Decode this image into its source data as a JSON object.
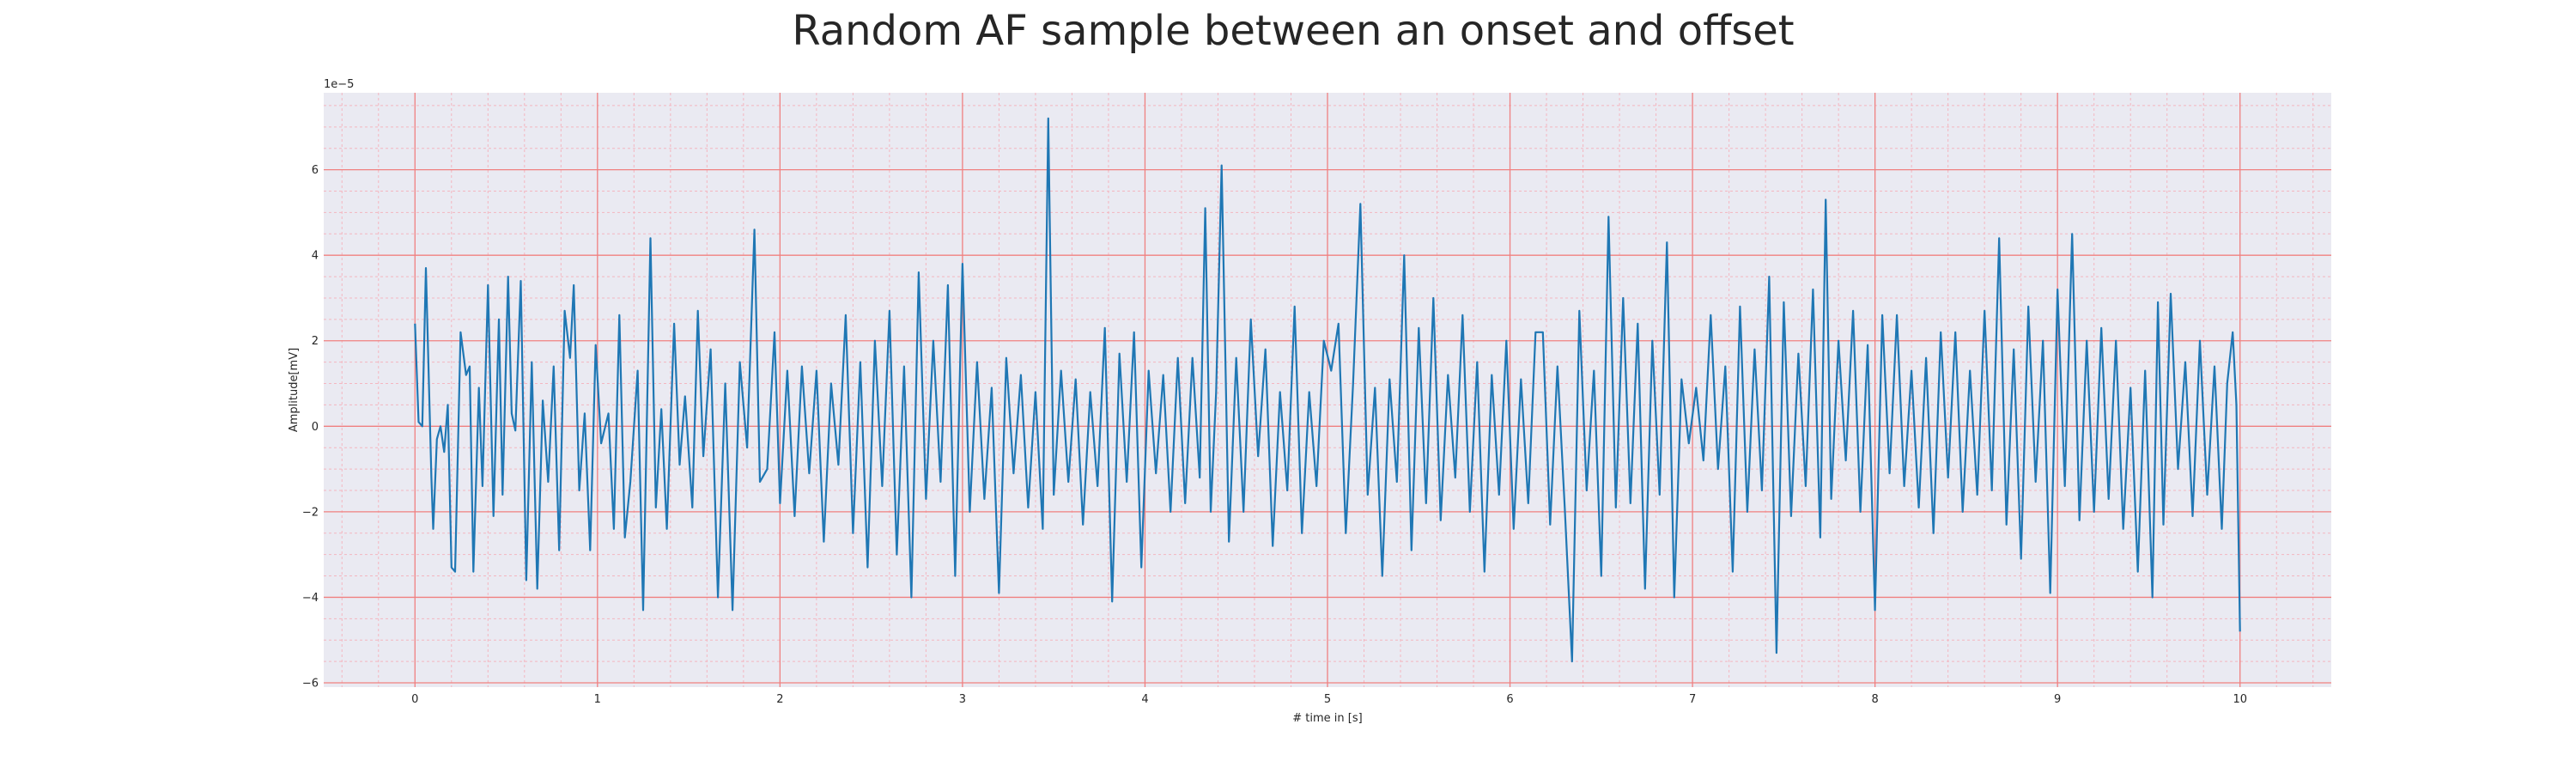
{
  "chart_data": {
    "type": "line",
    "title": "Random AF sample between an onset and offset",
    "xlabel": "# time in [s]",
    "ylabel": "Amplitude[mV]",
    "offset_text": "1e−5",
    "xlim": [
      -0.5,
      10.5
    ],
    "ylim": [
      -6.1,
      7.8
    ],
    "x_ticks": [
      0,
      1,
      2,
      3,
      4,
      5,
      6,
      7,
      8,
      9,
      10
    ],
    "x_tick_labels": [
      "0",
      "1",
      "2",
      "3",
      "4",
      "5",
      "6",
      "7",
      "8",
      "9",
      "10"
    ],
    "y_ticks": [
      -6,
      -4,
      -2,
      0,
      2,
      4,
      6
    ],
    "y_tick_labels": [
      "−6",
      "−4",
      "−2",
      "0",
      "2",
      "4",
      "6"
    ],
    "grid": "major and minor",
    "legend": "none",
    "colors": {
      "line": "#1f77b4",
      "plot_background": "#eaeaf2",
      "major_grid": "#f08080",
      "minor_grid": "#f4b6c0"
    },
    "series": [
      {
        "values": [
          [
            0.0,
            2.4
          ],
          [
            0.02,
            0.1
          ],
          [
            0.04,
            0.0
          ],
          [
            0.06,
            3.7
          ],
          [
            0.09,
            -1.2
          ],
          [
            0.1,
            -2.4
          ],
          [
            0.12,
            -0.3
          ],
          [
            0.14,
            0.0
          ],
          [
            0.16,
            -0.6
          ],
          [
            0.18,
            0.5
          ],
          [
            0.2,
            -3.3
          ],
          [
            0.22,
            -3.4
          ],
          [
            0.25,
            2.2
          ],
          [
            0.28,
            1.2
          ],
          [
            0.3,
            1.4
          ],
          [
            0.32,
            -3.4
          ],
          [
            0.35,
            0.9
          ],
          [
            0.37,
            -1.4
          ],
          [
            0.4,
            3.3
          ],
          [
            0.43,
            -2.1
          ],
          [
            0.46,
            2.5
          ],
          [
            0.48,
            -1.6
          ],
          [
            0.51,
            3.5
          ],
          [
            0.53,
            0.3
          ],
          [
            0.55,
            -0.1
          ],
          [
            0.58,
            3.4
          ],
          [
            0.61,
            -3.6
          ],
          [
            0.64,
            1.5
          ],
          [
            0.67,
            -3.8
          ],
          [
            0.7,
            0.6
          ],
          [
            0.73,
            -1.3
          ],
          [
            0.76,
            1.4
          ],
          [
            0.79,
            -2.9
          ],
          [
            0.82,
            2.7
          ],
          [
            0.85,
            1.6
          ],
          [
            0.87,
            3.3
          ],
          [
            0.9,
            -1.5
          ],
          [
            0.93,
            0.3
          ],
          [
            0.96,
            -2.9
          ],
          [
            0.99,
            1.9
          ],
          [
            1.02,
            -0.4
          ],
          [
            1.06,
            0.3
          ],
          [
            1.09,
            -2.4
          ],
          [
            1.12,
            2.6
          ],
          [
            1.15,
            -2.6
          ],
          [
            1.18,
            -1.3
          ],
          [
            1.22,
            1.3
          ],
          [
            1.25,
            -4.3
          ],
          [
            1.29,
            4.4
          ],
          [
            1.32,
            -1.9
          ],
          [
            1.35,
            0.4
          ],
          [
            1.38,
            -2.4
          ],
          [
            1.42,
            2.4
          ],
          [
            1.45,
            -0.9
          ],
          [
            1.48,
            0.7
          ],
          [
            1.52,
            -1.9
          ],
          [
            1.55,
            2.7
          ],
          [
            1.58,
            -0.7
          ],
          [
            1.62,
            1.8
          ],
          [
            1.66,
            -4.0
          ],
          [
            1.7,
            1.0
          ],
          [
            1.74,
            -4.3
          ],
          [
            1.78,
            1.5
          ],
          [
            1.82,
            -0.5
          ],
          [
            1.86,
            4.6
          ],
          [
            1.89,
            -1.3
          ],
          [
            1.93,
            -1.0
          ],
          [
            1.97,
            2.2
          ],
          [
            2.0,
            -1.8
          ],
          [
            2.04,
            1.3
          ],
          [
            2.08,
            -2.1
          ],
          [
            2.12,
            1.4
          ],
          [
            2.16,
            -1.1
          ],
          [
            2.2,
            1.3
          ],
          [
            2.24,
            -2.7
          ],
          [
            2.28,
            1.0
          ],
          [
            2.32,
            -0.9
          ],
          [
            2.36,
            2.6
          ],
          [
            2.4,
            -2.5
          ],
          [
            2.44,
            1.5
          ],
          [
            2.48,
            -3.3
          ],
          [
            2.52,
            2.0
          ],
          [
            2.56,
            -1.4
          ],
          [
            2.6,
            2.7
          ],
          [
            2.64,
            -3.0
          ],
          [
            2.68,
            1.4
          ],
          [
            2.72,
            -4.0
          ],
          [
            2.76,
            3.6
          ],
          [
            2.8,
            -1.7
          ],
          [
            2.84,
            2.0
          ],
          [
            2.88,
            -1.3
          ],
          [
            2.92,
            3.3
          ],
          [
            2.96,
            -3.5
          ],
          [
            3.0,
            3.8
          ],
          [
            3.04,
            -2.0
          ],
          [
            3.08,
            1.5
          ],
          [
            3.12,
            -1.7
          ],
          [
            3.16,
            0.9
          ],
          [
            3.2,
            -3.9
          ],
          [
            3.24,
            1.6
          ],
          [
            3.28,
            -1.1
          ],
          [
            3.32,
            1.2
          ],
          [
            3.36,
            -1.9
          ],
          [
            3.4,
            0.8
          ],
          [
            3.44,
            -2.4
          ],
          [
            3.47,
            7.2
          ],
          [
            3.5,
            -1.6
          ],
          [
            3.54,
            1.3
          ],
          [
            3.58,
            -1.3
          ],
          [
            3.62,
            1.1
          ],
          [
            3.66,
            -2.3
          ],
          [
            3.7,
            0.8
          ],
          [
            3.74,
            -1.4
          ],
          [
            3.78,
            2.3
          ],
          [
            3.82,
            -4.1
          ],
          [
            3.86,
            1.7
          ],
          [
            3.9,
            -1.3
          ],
          [
            3.94,
            2.2
          ],
          [
            3.98,
            -3.3
          ],
          [
            4.02,
            1.3
          ],
          [
            4.06,
            -1.1
          ],
          [
            4.1,
            1.2
          ],
          [
            4.14,
            -2.0
          ],
          [
            4.18,
            1.6
          ],
          [
            4.22,
            -1.8
          ],
          [
            4.26,
            1.6
          ],
          [
            4.3,
            -1.2
          ],
          [
            4.33,
            5.1
          ],
          [
            4.36,
            -2.0
          ],
          [
            4.39,
            0.8
          ],
          [
            4.42,
            6.1
          ],
          [
            4.46,
            -2.7
          ],
          [
            4.5,
            1.6
          ],
          [
            4.54,
            -2.0
          ],
          [
            4.58,
            2.5
          ],
          [
            4.62,
            -0.7
          ],
          [
            4.66,
            1.8
          ],
          [
            4.7,
            -2.8
          ],
          [
            4.74,
            0.8
          ],
          [
            4.78,
            -1.5
          ],
          [
            4.82,
            2.8
          ],
          [
            4.86,
            -2.5
          ],
          [
            4.9,
            0.8
          ],
          [
            4.94,
            -1.4
          ],
          [
            4.98,
            2.0
          ],
          [
            5.02,
            1.3
          ],
          [
            5.06,
            2.4
          ],
          [
            5.1,
            -2.5
          ],
          [
            5.14,
            1.0
          ],
          [
            5.18,
            5.2
          ],
          [
            5.22,
            -1.6
          ],
          [
            5.26,
            0.9
          ],
          [
            5.3,
            -3.5
          ],
          [
            5.34,
            1.1
          ],
          [
            5.38,
            -1.3
          ],
          [
            5.42,
            4.0
          ],
          [
            5.46,
            -2.9
          ],
          [
            5.5,
            2.3
          ],
          [
            5.54,
            -1.8
          ],
          [
            5.58,
            3.0
          ],
          [
            5.62,
            -2.2
          ],
          [
            5.66,
            1.2
          ],
          [
            5.7,
            -1.2
          ],
          [
            5.74,
            2.6
          ],
          [
            5.78,
            -2.0
          ],
          [
            5.82,
            1.5
          ],
          [
            5.86,
            -3.4
          ],
          [
            5.9,
            1.2
          ],
          [
            5.94,
            -1.6
          ],
          [
            5.98,
            2.0
          ],
          [
            6.02,
            -2.4
          ],
          [
            6.06,
            1.1
          ],
          [
            6.1,
            -1.8
          ],
          [
            6.14,
            2.2
          ],
          [
            6.18,
            2.2
          ],
          [
            6.22,
            -2.3
          ],
          [
            6.26,
            1.4
          ],
          [
            6.3,
            -1.9
          ],
          [
            6.34,
            -5.5
          ],
          [
            6.38,
            2.7
          ],
          [
            6.42,
            -1.5
          ],
          [
            6.46,
            1.3
          ],
          [
            6.5,
            -3.5
          ],
          [
            6.54,
            4.9
          ],
          [
            6.58,
            -1.9
          ],
          [
            6.62,
            3.0
          ],
          [
            6.66,
            -1.8
          ],
          [
            6.7,
            2.4
          ],
          [
            6.74,
            -3.8
          ],
          [
            6.78,
            2.0
          ],
          [
            6.82,
            -1.6
          ],
          [
            6.86,
            4.3
          ],
          [
            6.9,
            -4.0
          ],
          [
            6.94,
            1.1
          ],
          [
            6.98,
            -0.4
          ],
          [
            7.02,
            0.9
          ],
          [
            7.06,
            -0.8
          ],
          [
            7.1,
            2.6
          ],
          [
            7.14,
            -1.0
          ],
          [
            7.18,
            1.4
          ],
          [
            7.22,
            -3.4
          ],
          [
            7.26,
            2.8
          ],
          [
            7.3,
            -2.0
          ],
          [
            7.34,
            1.8
          ],
          [
            7.38,
            -1.5
          ],
          [
            7.42,
            3.5
          ],
          [
            7.46,
            -5.3
          ],
          [
            7.5,
            2.9
          ],
          [
            7.54,
            -2.1
          ],
          [
            7.58,
            1.7
          ],
          [
            7.62,
            -1.4
          ],
          [
            7.66,
            3.2
          ],
          [
            7.7,
            -2.6
          ],
          [
            7.73,
            5.3
          ],
          [
            7.76,
            -1.7
          ],
          [
            7.8,
            2.0
          ],
          [
            7.84,
            -0.8
          ],
          [
            7.88,
            2.7
          ],
          [
            7.92,
            -2.0
          ],
          [
            7.96,
            1.9
          ],
          [
            8.0,
            -4.3
          ],
          [
            8.04,
            2.6
          ],
          [
            8.08,
            -1.1
          ],
          [
            8.12,
            2.6
          ],
          [
            8.16,
            -1.4
          ],
          [
            8.2,
            1.3
          ],
          [
            8.24,
            -1.9
          ],
          [
            8.28,
            1.6
          ],
          [
            8.32,
            -2.5
          ],
          [
            8.36,
            2.2
          ],
          [
            8.4,
            -1.2
          ],
          [
            8.44,
            2.2
          ],
          [
            8.48,
            -2.0
          ],
          [
            8.52,
            1.3
          ],
          [
            8.56,
            -1.6
          ],
          [
            8.6,
            2.7
          ],
          [
            8.64,
            -1.5
          ],
          [
            8.68,
            4.4
          ],
          [
            8.72,
            -2.3
          ],
          [
            8.76,
            1.8
          ],
          [
            8.8,
            -3.1
          ],
          [
            8.84,
            2.8
          ],
          [
            8.88,
            -1.3
          ],
          [
            8.92,
            2.0
          ],
          [
            8.96,
            -3.9
          ],
          [
            9.0,
            3.2
          ],
          [
            9.04,
            -1.4
          ],
          [
            9.08,
            4.5
          ],
          [
            9.12,
            -2.2
          ],
          [
            9.16,
            2.0
          ],
          [
            9.2,
            -2.0
          ],
          [
            9.24,
            2.3
          ],
          [
            9.28,
            -1.7
          ],
          [
            9.32,
            2.0
          ],
          [
            9.36,
            -2.4
          ],
          [
            9.4,
            0.9
          ],
          [
            9.44,
            -3.4
          ],
          [
            9.48,
            1.3
          ],
          [
            9.52,
            -4.0
          ],
          [
            9.55,
            2.9
          ],
          [
            9.58,
            -2.3
          ],
          [
            9.62,
            3.1
          ],
          [
            9.66,
            -1.0
          ],
          [
            9.7,
            1.5
          ],
          [
            9.74,
            -2.1
          ],
          [
            9.78,
            2.0
          ],
          [
            9.82,
            -1.6
          ],
          [
            9.86,
            1.4
          ],
          [
            9.9,
            -2.4
          ],
          [
            9.93,
            1.0
          ],
          [
            9.96,
            2.2
          ],
          [
            9.98,
            0.5
          ],
          [
            10.0,
            -4.8
          ]
        ]
      }
    ]
  }
}
